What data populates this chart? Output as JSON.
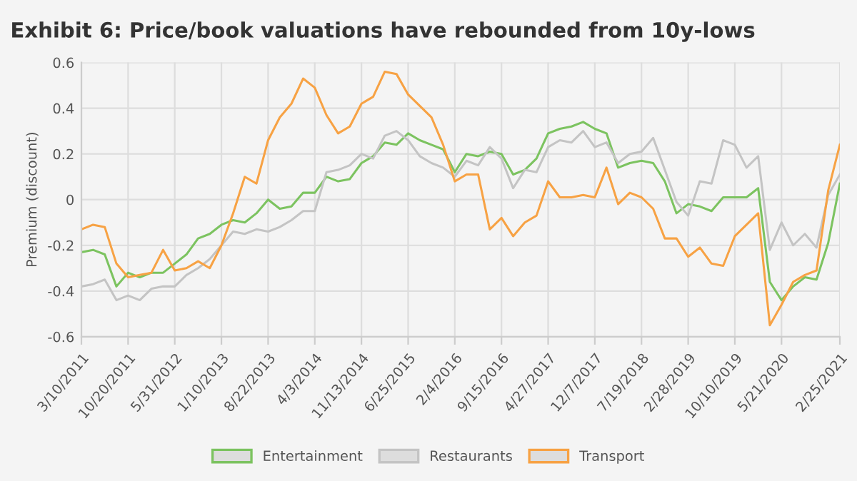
{
  "chart_data": {
    "type": "line",
    "title": "Exhibit 6: Price/book valuations have rebounded from 10y-lows",
    "ylabel": "Premium (discount)",
    "x": [
      "2011-03-10",
      "2011-05-05",
      "2011-06-30",
      "2011-08-25",
      "2011-10-20",
      "2011-12-15",
      "2012-02-09",
      "2012-04-05",
      "2012-05-31",
      "2012-07-26",
      "2012-09-20",
      "2012-11-15",
      "2013-01-10",
      "2013-03-07",
      "2013-05-02",
      "2013-06-27",
      "2013-08-22",
      "2013-10-17",
      "2013-12-12",
      "2014-02-06",
      "2014-04-03",
      "2014-05-29",
      "2014-07-24",
      "2014-09-18",
      "2014-11-13",
      "2015-01-08",
      "2015-03-05",
      "2015-04-30",
      "2015-06-25",
      "2015-08-20",
      "2015-10-15",
      "2015-12-10",
      "2016-02-04",
      "2016-03-31",
      "2016-05-26",
      "2016-07-21",
      "2016-09-15",
      "2016-11-10",
      "2017-01-05",
      "2017-03-02",
      "2017-04-27",
      "2017-06-22",
      "2017-08-17",
      "2017-10-12",
      "2017-12-07",
      "2018-02-01",
      "2018-03-29",
      "2018-05-24",
      "2018-07-19",
      "2018-09-13",
      "2018-11-08",
      "2019-01-03",
      "2019-02-28",
      "2019-04-25",
      "2019-06-20",
      "2019-08-15",
      "2019-10-10",
      "2019-12-05",
      "2020-01-30",
      "2020-03-26",
      "2020-05-21",
      "2020-07-16",
      "2020-09-10",
      "2020-11-05",
      "2020-12-31",
      "2021-02-25"
    ],
    "series": [
      {
        "name": "Entertainment",
        "color": "#7cc360",
        "values": [
          -0.23,
          -0.22,
          -0.24,
          -0.38,
          -0.32,
          -0.34,
          -0.32,
          -0.32,
          -0.28,
          -0.24,
          -0.17,
          -0.15,
          -0.11,
          -0.09,
          -0.1,
          -0.06,
          0.0,
          -0.04,
          -0.03,
          0.03,
          0.03,
          0.1,
          0.08,
          0.09,
          0.16,
          0.19,
          0.25,
          0.24,
          0.29,
          0.26,
          0.24,
          0.22,
          0.12,
          0.2,
          0.19,
          0.21,
          0.2,
          0.11,
          0.13,
          0.18,
          0.29,
          0.31,
          0.32,
          0.34,
          0.31,
          0.29,
          0.14,
          0.16,
          0.17,
          0.16,
          0.08,
          -0.06,
          -0.02,
          -0.03,
          -0.05,
          0.01,
          0.01,
          0.01,
          0.05,
          -0.36,
          -0.44,
          -0.38,
          -0.34,
          -0.35,
          -0.19,
          0.07
        ]
      },
      {
        "name": "Restaurants",
        "color": "#c4c4c4",
        "values": [
          -0.38,
          -0.37,
          -0.35,
          -0.44,
          -0.42,
          -0.44,
          -0.39,
          -0.38,
          -0.38,
          -0.33,
          -0.3,
          -0.26,
          -0.2,
          -0.14,
          -0.15,
          -0.13,
          -0.14,
          -0.12,
          -0.09,
          -0.05,
          -0.05,
          0.12,
          0.13,
          0.15,
          0.2,
          0.18,
          0.28,
          0.3,
          0.26,
          0.19,
          0.16,
          0.14,
          0.1,
          0.17,
          0.15,
          0.23,
          0.18,
          0.05,
          0.13,
          0.12,
          0.23,
          0.26,
          0.25,
          0.3,
          0.23,
          0.25,
          0.16,
          0.2,
          0.21,
          0.27,
          0.13,
          -0.01,
          -0.07,
          0.08,
          0.07,
          0.26,
          0.24,
          0.14,
          0.19,
          -0.22,
          -0.1,
          -0.2,
          -0.15,
          -0.21,
          0.02,
          0.11
        ]
      },
      {
        "name": "Transport",
        "color": "#f7a244",
        "values": [
          -0.13,
          -0.11,
          -0.12,
          -0.28,
          -0.34,
          -0.33,
          -0.32,
          -0.22,
          -0.31,
          -0.3,
          -0.27,
          -0.3,
          -0.2,
          -0.06,
          0.1,
          0.07,
          0.26,
          0.36,
          0.42,
          0.53,
          0.49,
          0.37,
          0.29,
          0.32,
          0.42,
          0.45,
          0.56,
          0.55,
          0.46,
          0.41,
          0.36,
          0.24,
          0.08,
          0.11,
          0.11,
          -0.13,
          -0.08,
          -0.16,
          -0.1,
          -0.07,
          0.08,
          0.01,
          0.01,
          0.02,
          0.01,
          0.14,
          -0.02,
          0.03,
          0.01,
          -0.04,
          -0.17,
          -0.17,
          -0.25,
          -0.21,
          -0.28,
          -0.29,
          -0.16,
          -0.11,
          -0.06,
          -0.55,
          -0.46,
          -0.36,
          -0.33,
          -0.31,
          0.04,
          0.24
        ]
      }
    ],
    "xlim": [
      "2011-03-10",
      "2021-02-25"
    ],
    "xticks": [
      {
        "value": "2011-03-10",
        "label": "3/10/2011"
      },
      {
        "value": "2011-10-20",
        "label": "10/20/2011"
      },
      {
        "value": "2012-05-31",
        "label": "5/31/2012"
      },
      {
        "value": "2013-01-10",
        "label": "1/10/2013"
      },
      {
        "value": "2013-08-22",
        "label": "8/22/2013"
      },
      {
        "value": "2014-04-03",
        "label": "4/3/2014"
      },
      {
        "value": "2014-11-13",
        "label": "11/13/2014"
      },
      {
        "value": "2015-06-25",
        "label": "6/25/2015"
      },
      {
        "value": "2016-02-04",
        "label": "2/4/2016"
      },
      {
        "value": "2016-09-15",
        "label": "9/15/2016"
      },
      {
        "value": "2017-04-27",
        "label": "4/27/2017"
      },
      {
        "value": "2017-12-07",
        "label": "12/7/2017"
      },
      {
        "value": "2018-07-19",
        "label": "7/19/2018"
      },
      {
        "value": "2019-02-28",
        "label": "2/28/2019"
      },
      {
        "value": "2019-10-10",
        "label": "10/10/2019"
      },
      {
        "value": "2020-05-21",
        "label": "5/21/2020"
      },
      {
        "value": "2021-02-25",
        "label": "2/25/2021"
      }
    ],
    "ylim": [
      -0.6,
      0.6
    ],
    "yticks": [
      -0.6,
      -0.4,
      -0.2,
      0,
      0.2,
      0.4,
      0.6
    ],
    "grid": true,
    "legend": "bottom",
    "marker": "none",
    "line_style": "solid"
  }
}
